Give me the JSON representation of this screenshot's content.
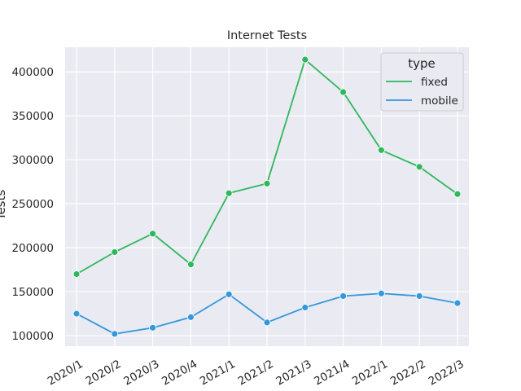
{
  "chart_data": {
    "type": "line",
    "title": "Internet Tests",
    "xlabel": "",
    "ylabel": "Tests",
    "categories": [
      "2020/1",
      "2020/2",
      "2020/3",
      "2020/4",
      "2021/1",
      "2021/2",
      "2021/3",
      "2021/4",
      "2022/1",
      "2022/2",
      "2022/3"
    ],
    "series": [
      {
        "name": "fixed",
        "color": "#2eb85c",
        "values": [
          170000,
          195000,
          216000,
          181000,
          262000,
          273000,
          414000,
          377000,
          311000,
          292000,
          261000
        ]
      },
      {
        "name": "mobile",
        "color": "#3498db",
        "values": [
          125000,
          102000,
          109000,
          121000,
          147000,
          115000,
          132000,
          145000,
          148000,
          145000,
          137000
        ]
      }
    ],
    "yticks": [
      100000,
      150000,
      200000,
      250000,
      300000,
      350000,
      400000
    ],
    "ylim": [
      88000,
      428000
    ],
    "grid": true,
    "legend": {
      "title": "type",
      "placement": "top-right"
    },
    "background": "#eaeaf2"
  }
}
